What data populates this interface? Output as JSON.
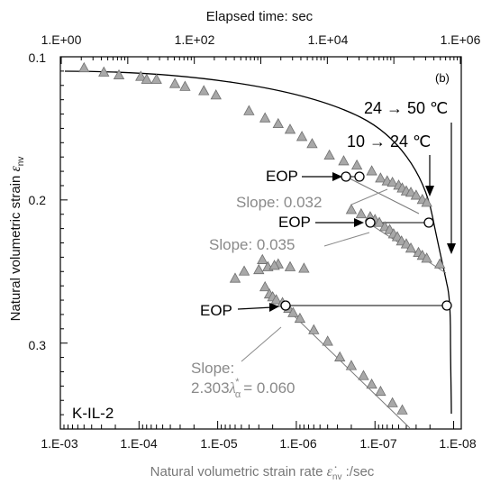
{
  "chart_data": {
    "type": "scatter",
    "panel_label": "(b)",
    "specimen": "K-IL-2",
    "top_axis": {
      "title": "Elapsed time: sec",
      "scale": "log",
      "tick_labels": [
        "1.E+00",
        "1.E+02",
        "1.E+04",
        "1.E+06"
      ]
    },
    "bottom_axis": {
      "title_parts": [
        "Natural volumetric strain rate ",
        "ε̇",
        "nv",
        " :/sec"
      ],
      "scale": "log",
      "reversed": true,
      "xlim": [
        0.001,
        8e-09
      ],
      "tick_values": [
        0.001,
        0.0001,
        1e-05,
        1e-06,
        1e-07,
        1e-08
      ],
      "tick_labels": [
        "1.E-03",
        "1.E-04",
        "1.E-05",
        "1.E-06",
        "1.E-07",
        "1.E-08"
      ]
    },
    "left_axis": {
      "title_parts": [
        "Natural volumetric strain ",
        "ε",
        "nv"
      ],
      "reversed": true,
      "ylim": [
        0.1,
        0.36
      ],
      "tick_values": [
        0.1,
        0.2,
        0.3
      ],
      "tick_labels": [
        "0.1",
        "0.2",
        "0.3"
      ]
    },
    "series": [
      {
        "marker": "triangle",
        "color": "#a8a8a8",
        "points": [
          [
            0.0005,
            0.108
          ],
          [
            0.00028,
            0.111
          ],
          [
            0.00018,
            0.113
          ],
          [
            9.5e-05,
            0.114
          ],
          [
            8e-05,
            0.116
          ],
          [
            6e-05,
            0.116
          ],
          [
            3.5e-05,
            0.119
          ],
          [
            2.6e-05,
            0.121
          ],
          [
            1.5e-05,
            0.124
          ],
          [
            1.05e-05,
            0.127
          ],
          [
            4e-06,
            0.138
          ],
          [
            2.5e-06,
            0.143
          ],
          [
            1.7e-06,
            0.147
          ],
          [
            1.2e-06,
            0.151
          ],
          [
            8.5e-07,
            0.156
          ],
          [
            6.3e-07,
            0.161
          ],
          [
            3.8e-07,
            0.169
          ],
          [
            2.5e-07,
            0.173
          ],
          [
            1.7e-07,
            0.176
          ],
          [
            1.1e-07,
            0.18
          ],
          [
            8.5e-08,
            0.185
          ],
          [
            7e-08,
            0.187
          ],
          [
            6e-08,
            0.188
          ],
          [
            5e-08,
            0.19
          ],
          [
            4.5e-08,
            0.192
          ],
          [
            4e-08,
            0.194
          ],
          [
            3.5e-08,
            0.195
          ],
          [
            3e-08,
            0.197
          ],
          [
            2.5e-08,
            0.2
          ],
          [
            2.2e-08,
            0.202
          ],
          [
            2e-07,
            0.207
          ],
          [
            1.5e-07,
            0.21
          ],
          [
            1.15e-07,
            0.212
          ],
          [
            1e-07,
            0.214
          ],
          [
            8.8e-08,
            0.216
          ],
          [
            7.5e-08,
            0.219
          ],
          [
            6.5e-08,
            0.221
          ],
          [
            5.8e-08,
            0.224
          ],
          [
            5.2e-08,
            0.226
          ],
          [
            4.6e-08,
            0.229
          ],
          [
            4e-08,
            0.231
          ],
          [
            3.5e-08,
            0.234
          ],
          [
            2.8e-08,
            0.237
          ],
          [
            2.5e-08,
            0.239
          ],
          [
            2.2e-08,
            0.241
          ],
          [
            1.5e-08,
            0.245
          ],
          [
            2.7e-06,
            0.242
          ],
          [
            1.7e-06,
            0.245
          ],
          [
            1.2e-06,
            0.247
          ],
          [
            8e-07,
            0.248
          ],
          [
            6e-06,
            0.255
          ],
          [
            4.6e-06,
            0.25
          ],
          [
            3e-06,
            0.249
          ],
          [
            2.3e-06,
            0.247
          ],
          [
            1.9e-06,
            0.246
          ],
          [
            2.5e-06,
            0.261
          ],
          [
            2.2e-06,
            0.266
          ],
          [
            2e-06,
            0.268
          ],
          [
            1.8e-06,
            0.27
          ],
          [
            1.5e-06,
            0.272
          ],
          [
            1.25e-06,
            0.276
          ],
          [
            1.1e-06,
            0.279
          ],
          [
            9e-07,
            0.283
          ],
          [
            6e-07,
            0.291
          ],
          [
            4e-07,
            0.299
          ],
          [
            2.8e-07,
            0.31
          ],
          [
            2e-07,
            0.316
          ],
          [
            1.4e-07,
            0.323
          ],
          [
            1.1e-07,
            0.329
          ],
          [
            8.5e-08,
            0.334
          ],
          [
            6e-08,
            0.342
          ],
          [
            4.5e-08,
            0.347
          ]
        ]
      }
    ],
    "annotations": {
      "eop_label": "EOP",
      "slope_1": "Slope: 0.032",
      "slope_2": "Slope: 0.035",
      "slope_3_line1": "Slope:",
      "slope_3_prefix": "2.303",
      "slope_3_symbol": "λ",
      "slope_3_sub": "α",
      "slope_3_sup": "*",
      "slope_3_suffix": " = 0.060",
      "temp_1": "10 → 24 ℃",
      "temp_2": "24 → 50 ℃"
    }
  }
}
